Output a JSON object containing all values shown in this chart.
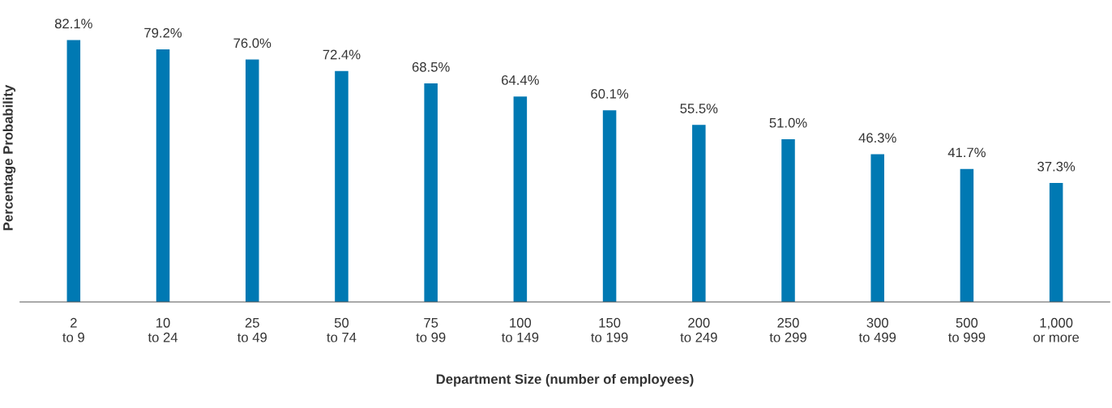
{
  "chart_data": {
    "type": "bar",
    "xlabel": "Department Size (number of employees)",
    "ylabel": "Percentage Probability",
    "categories": [
      "2\nto 9",
      "10\nto 24",
      "25\nto 49",
      "50\nto 74",
      "75\nto 99",
      "100\nto 149",
      "150\nto 199",
      "200\nto 249",
      "250\nto 299",
      "300\nto 499",
      "500\nto 999",
      "1,000\nor more"
    ],
    "values": [
      82.1,
      79.2,
      76.0,
      72.4,
      68.5,
      64.4,
      60.1,
      55.5,
      51.0,
      46.3,
      41.7,
      37.3
    ],
    "value_labels": [
      "82.1%",
      "79.2%",
      "76.0%",
      "72.4%",
      "68.5%",
      "64.4%",
      "60.1%",
      "55.5%",
      "51.0%",
      "46.3%",
      "41.7%",
      "37.3%"
    ],
    "color": "#0079b3",
    "tick_labels": "x",
    "grid": false,
    "legend": false
  }
}
